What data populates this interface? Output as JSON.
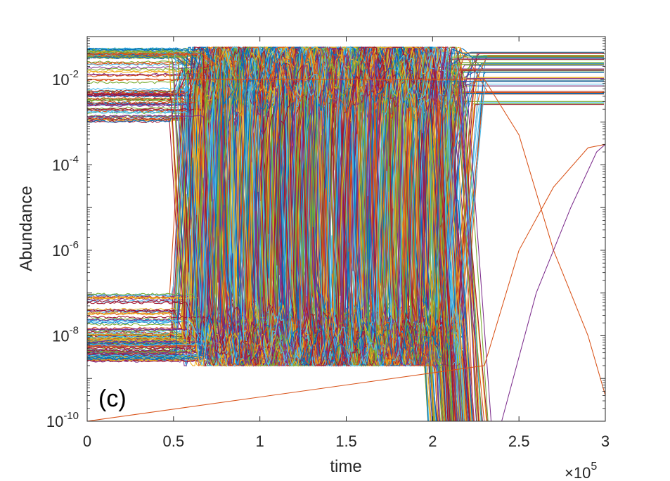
{
  "chart_data": {
    "type": "line",
    "title": "",
    "panel_label": "(c)",
    "xlabel": "time",
    "ylabel": "Abundance",
    "x_multiplier_base": "×10",
    "x_multiplier_exp": "5",
    "xlim": [
      0,
      300000
    ],
    "ylim": [
      1e-10,
      0.1
    ],
    "y_scale": "log",
    "grid": false,
    "legend": "none",
    "x_ticks": [
      {
        "value": 0,
        "label": "0"
      },
      {
        "value": 50000,
        "label": "0.5"
      },
      {
        "value": 100000,
        "label": "1"
      },
      {
        "value": 150000,
        "label": "1.5"
      },
      {
        "value": 200000,
        "label": "2"
      },
      {
        "value": 250000,
        "label": "2.5"
      },
      {
        "value": 300000,
        "label": "3"
      }
    ],
    "y_ticks": [
      {
        "value": 1e-10,
        "base": "10",
        "exp": "-10"
      },
      {
        "value": 1e-08,
        "base": "10",
        "exp": "-8"
      },
      {
        "value": 1e-06,
        "base": "10",
        "exp": "-6"
      },
      {
        "value": 0.0001,
        "base": "10",
        "exp": "-4"
      },
      {
        "value": 0.01,
        "base": "10",
        "exp": "-2"
      }
    ],
    "colors": [
      "#0072BD",
      "#D95319",
      "#EDB120",
      "#7E2F8E",
      "#77AC30",
      "#4DBEEE",
      "#A2142F"
    ],
    "highlighted_series": [
      {
        "color": "#D95319",
        "x": [
          0,
          230000,
          250000,
          270000,
          290000,
          300000
        ],
        "y": [
          0.01,
          0.01,
          0.0005,
          1e-06,
          1e-08,
          4e-10
        ]
      },
      {
        "color": "#D95319",
        "x": [
          0,
          230000,
          250000,
          270000,
          290000,
          300000
        ],
        "y": [
          1e-10,
          2e-09,
          1e-06,
          3e-05,
          0.00025,
          0.0003
        ]
      },
      {
        "color": "#7E2F8E",
        "x": [
          0,
          240000,
          260000,
          280000,
          295000,
          300000
        ],
        "y": [
          1e-10,
          1e-10,
          1e-07,
          1e-05,
          0.0002,
          0.0003
        ]
      }
    ]
  }
}
